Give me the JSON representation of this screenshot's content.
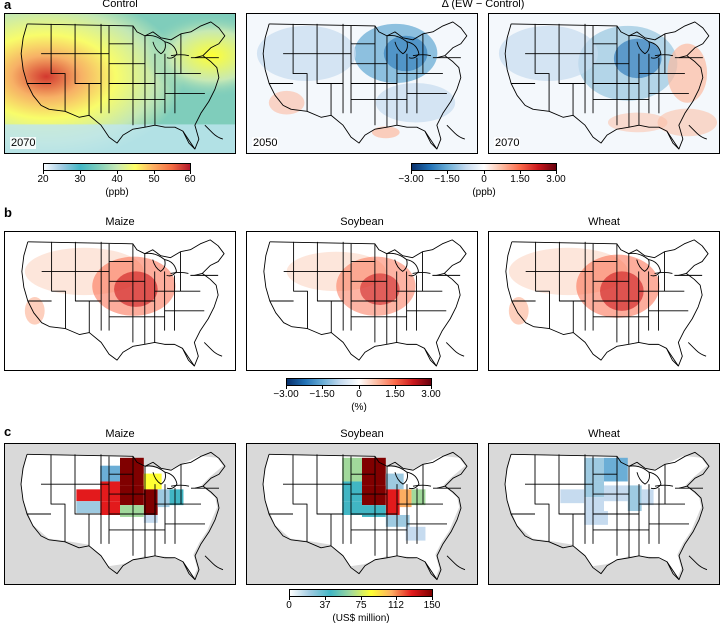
{
  "panel_letters": {
    "a": "a",
    "b": "b",
    "c": "c"
  },
  "row_a": {
    "titles": {
      "control": "Control",
      "delta": "Δ (EW − Control)"
    },
    "years": [
      "2070",
      "2050",
      "2070"
    ],
    "control_colorbar": {
      "ticks": [
        "20",
        "30",
        "40",
        "50",
        "60"
      ],
      "unit": "(ppb)",
      "colors": [
        "#f7fbff",
        "#9ecae1",
        "#41b6c4",
        "#7fcdbb",
        "#c7e9b4",
        "#ffff66",
        "#fdae61",
        "#f46d43",
        "#b2182b"
      ]
    },
    "delta_colorbar": {
      "ticks": [
        "−3.00",
        "−1.50",
        "0",
        "1.50",
        "3.00"
      ],
      "unit": "(ppb)",
      "colors": [
        "#08306b",
        "#2171b5",
        "#6baed6",
        "#c6dbef",
        "#ffffff",
        "#fcbba1",
        "#fb6a4a",
        "#cb181d",
        "#67000d"
      ]
    }
  },
  "row_b": {
    "titles": [
      "Maize",
      "Soybean",
      "Wheat"
    ],
    "colorbar": {
      "ticks": [
        "−3.00",
        "−1.50",
        "0",
        "1.50",
        "3.00"
      ],
      "unit": "(%)",
      "colors": [
        "#08306b",
        "#2171b5",
        "#6baed6",
        "#c6dbef",
        "#ffffff",
        "#fcbba1",
        "#fb6a4a",
        "#cb181d",
        "#67000d"
      ]
    }
  },
  "row_c": {
    "titles": [
      "Maize",
      "Soybean",
      "Wheat"
    ],
    "colorbar": {
      "ticks": [
        "0",
        "37",
        "75",
        "112",
        "150"
      ],
      "unit": "(US$ million)",
      "colors": [
        "#ffffff",
        "#9ecae1",
        "#41b6c4",
        "#a1d99b",
        "#ffff33",
        "#fdae61",
        "#e31a1c",
        "#800000"
      ]
    }
  }
}
